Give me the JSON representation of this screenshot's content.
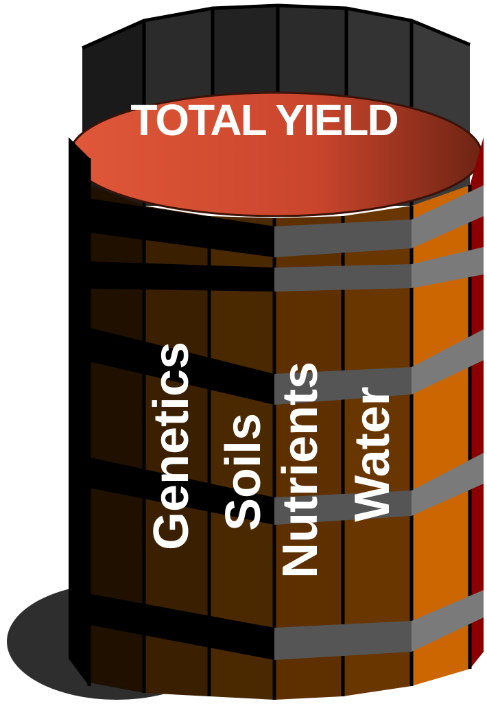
{
  "title": "TOTAL YIELD",
  "staves": [
    {
      "label": "Genetics"
    },
    {
      "label": "Soils"
    },
    {
      "label": "Nutrients"
    },
    {
      "label": "Water"
    }
  ]
}
